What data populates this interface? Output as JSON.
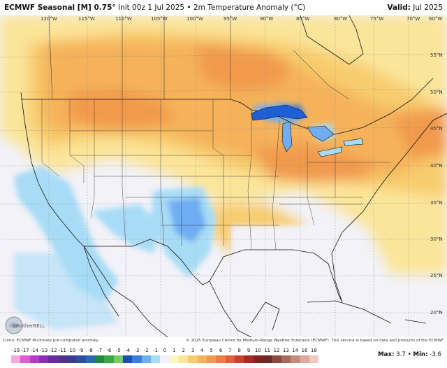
{
  "header": {
    "model": "ECMWF Seasonal [M] 0.75°",
    "info": "Init 00z 1 Jul 2025 • 2m Temperature Anomaly (°C)",
    "valid_label": "Valid:",
    "valid_value": "Jul 2025"
  },
  "footer": {
    "climo_note": "Climo: ECMWF M-climate pre-computed anomaly",
    "copyright": "© 2025 European Centre for Medium-Range Weather Forecasts (ECMWF). This service is based on data and products of the ECMWF.",
    "logo_text": "WeatherBELL"
  },
  "stats": {
    "max_label": "Max:",
    "max_value": "3.7",
    "min_label": "Min:",
    "min_value": "-3.6"
  },
  "longitudes": [
    "120°W",
    "115°W",
    "110°W",
    "105°W",
    "100°W",
    "95°W",
    "90°W",
    "85°W",
    "80°W",
    "75°W",
    "70°W",
    "60°W"
  ],
  "latitudes": [
    "55°N",
    "50°N",
    "45°N",
    "40°N",
    "35°N",
    "30°N",
    "25°N",
    "20°N"
  ],
  "colorbar": {
    "labels": [
      "-19",
      "-17",
      "-14",
      "-13",
      "-12",
      "-11",
      "-10",
      "-9",
      "-8",
      "-7",
      "-6",
      "-5",
      "-4",
      "-3",
      "-2",
      "-1",
      "0",
      "1",
      "2",
      "3",
      "4",
      "5",
      "6",
      "7",
      "8",
      "9",
      "10",
      "11",
      "12",
      "13",
      "14",
      "16",
      "18"
    ],
    "colors": [
      "#f6a9d8",
      "#e05bd0",
      "#b63ac7",
      "#8b2fb8",
      "#6b2aa3",
      "#55308f",
      "#3d3b8e",
      "#2c4fa0",
      "#2a6bb5",
      "#1f8a3e",
      "#3aa845",
      "#7bc96a",
      "#1c4fb0",
      "#3b7ce0",
      "#6faef3",
      "#a8dcf6",
      "#f2f2f8",
      "#fdf6c4",
      "#fbe59a",
      "#f8cc6e",
      "#f5b25a",
      "#f19a4e",
      "#ec7f44",
      "#e05e3a",
      "#c9402f",
      "#a82a26",
      "#842020",
      "#6d2a24",
      "#8a4b3e",
      "#a86b5c",
      "#c58b7e",
      "#dca9a0",
      "#f0c8c2"
    ]
  }
}
